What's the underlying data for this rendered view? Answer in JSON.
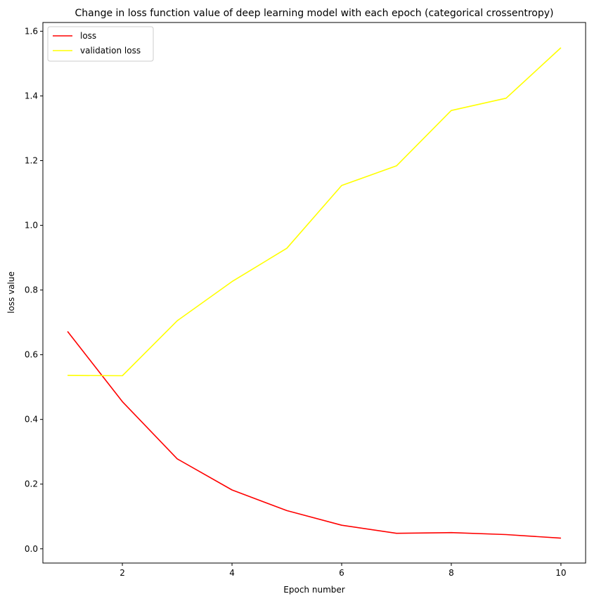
{
  "chart_data": {
    "type": "line",
    "title": "Change in loss function value of deep learning model with each epoch (categorical crossentropy)",
    "xlabel": "Epoch number",
    "ylabel": "loss value",
    "x": [
      1,
      2,
      3,
      4,
      5,
      6,
      7,
      8,
      9,
      10
    ],
    "xlim": [
      0.55,
      10.45
    ],
    "ylim": [
      -0.044,
      1.627
    ],
    "xticks": [
      2,
      4,
      6,
      8,
      10
    ],
    "yticks": [
      0.0,
      0.2,
      0.4,
      0.6,
      0.8,
      1.0,
      1.2,
      1.4,
      1.6
    ],
    "ytick_labels": [
      "0.0",
      "0.2",
      "0.4",
      "0.6",
      "0.8",
      "1.0",
      "1.2",
      "1.4",
      "1.6"
    ],
    "grid": false,
    "legend_position": "top-left",
    "series": [
      {
        "name": "loss",
        "color": "#ff0000",
        "values": [
          0.672,
          0.455,
          0.278,
          0.182,
          0.118,
          0.073,
          0.048,
          0.05,
          0.044,
          0.033
        ]
      },
      {
        "name": "validation loss",
        "color": "#ffff00",
        "values": [
          0.536,
          0.535,
          0.705,
          0.826,
          0.929,
          1.123,
          1.184,
          1.355,
          1.393,
          1.549
        ]
      }
    ]
  }
}
